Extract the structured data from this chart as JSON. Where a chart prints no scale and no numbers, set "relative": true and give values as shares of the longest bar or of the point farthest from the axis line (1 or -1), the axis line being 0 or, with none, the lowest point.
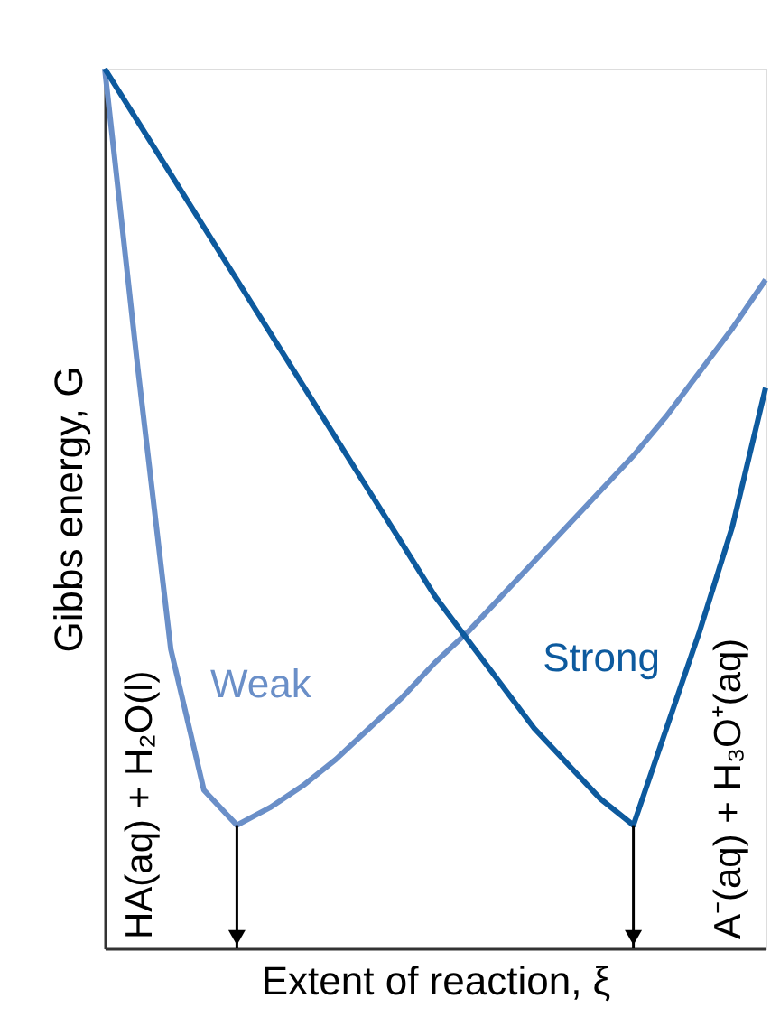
{
  "chart_data": {
    "type": "line",
    "relative": true,
    "tick_labels": false,
    "grid": false,
    "marker": "none",
    "line_style": "solid",
    "xlabel": "Extent of reaction, ξ",
    "ylabel": "Gibbs energy, G",
    "categories": [
      null,
      null,
      null,
      null,
      null,
      null,
      null,
      null,
      null,
      null,
      null,
      null,
      null,
      null,
      null,
      null,
      null,
      null,
      null,
      null,
      null
    ],
    "series": [
      {
        "name": "Weak",
        "color": "#6a8fc8",
        "values": [
          1.0,
          0.66,
          0.34,
          0.18,
          0.14,
          0.16,
          0.185,
          0.215,
          0.25,
          0.285,
          0.325,
          0.36,
          0.4,
          0.44,
          0.48,
          0.52,
          0.56,
          0.605,
          0.655,
          0.705,
          0.76
        ]
      },
      {
        "name": "Strong",
        "color": "#0d5a9e",
        "values": [
          1.0,
          0.94,
          0.88,
          0.82,
          0.76,
          0.7,
          0.64,
          0.58,
          0.52,
          0.46,
          0.4,
          0.35,
          0.3,
          0.25,
          0.21,
          0.17,
          0.14,
          0.25,
          0.36,
          0.48,
          0.637
        ]
      }
    ],
    "annotations": [
      "HA(aq) + H₂O(l)",
      "A⁻(aq) + H₃O⁺(aq)"
    ]
  }
}
